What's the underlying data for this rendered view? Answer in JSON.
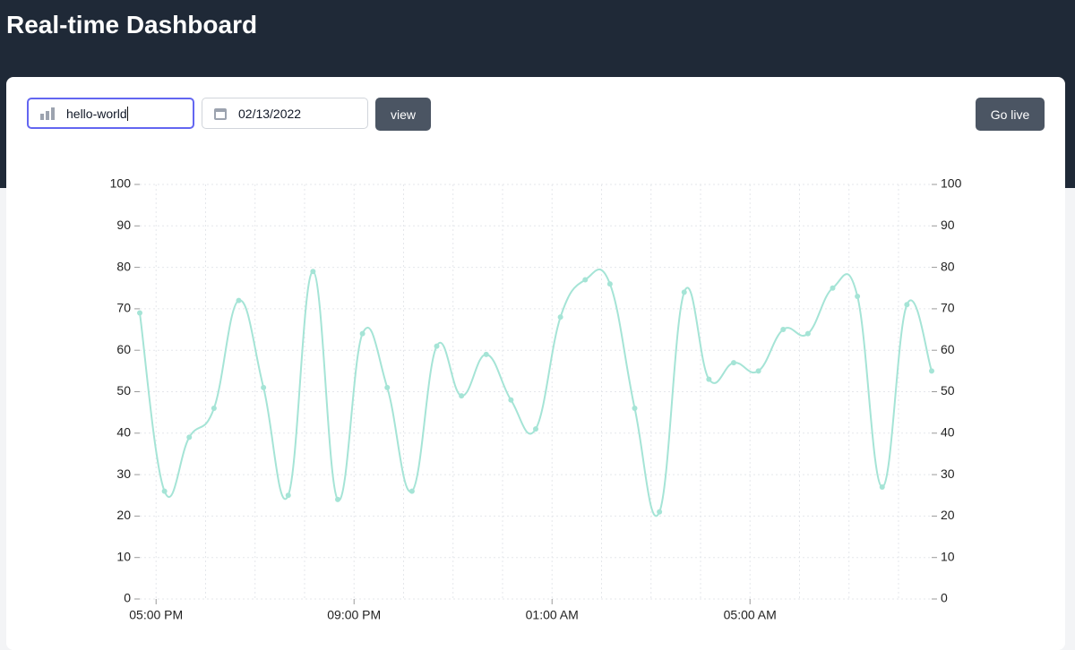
{
  "header": {
    "title": "Real-time Dashboard"
  },
  "controls": {
    "metric": "hello-world",
    "date": "02/13/2022",
    "view_button": "view",
    "live_button": "Go live"
  },
  "chart_data": {
    "type": "line",
    "x": [
      16.67,
      17.17,
      17.67,
      18.17,
      18.67,
      19.17,
      19.67,
      20.17,
      20.67,
      21.17,
      21.67,
      22.17,
      22.67,
      23.17,
      23.67,
      24.17,
      24.67,
      25.17,
      25.67,
      26.17,
      26.67,
      27.17,
      27.67,
      28.17,
      28.67,
      29.17,
      29.67,
      30.17,
      30.67,
      31.17,
      31.67,
      32.17,
      32.67
    ],
    "series": [
      {
        "color": "#a5e4d6",
        "values": [
          69,
          26,
          39,
          46,
          72,
          51,
          25,
          79,
          24,
          64,
          51,
          26,
          61,
          49,
          59,
          48,
          41,
          68,
          77,
          76,
          46,
          21,
          74,
          53,
          57,
          55,
          65,
          64,
          75,
          73,
          27,
          71,
          55
        ]
      }
    ],
    "xlim": [
      16.67,
      32.67
    ],
    "xticks": [
      {
        "value": 17,
        "label": "05:00 PM"
      },
      {
        "value": 21,
        "label": "09:00 PM"
      },
      {
        "value": 25,
        "label": "01:00 AM"
      },
      {
        "value": 29,
        "label": "05:00 AM"
      }
    ],
    "xminorticks": [
      18,
      19,
      20,
      22,
      23,
      24,
      26,
      27,
      28,
      30,
      31,
      32
    ],
    "ylim": [
      0,
      100
    ],
    "yticks": [
      0,
      10,
      20,
      30,
      40,
      50,
      60,
      70,
      80,
      90,
      100
    ],
    "y2lim": [
      0,
      100
    ],
    "y2ticks": [
      0,
      10,
      20,
      30,
      40,
      50,
      60,
      70,
      80,
      90,
      100
    ],
    "grid": true
  }
}
